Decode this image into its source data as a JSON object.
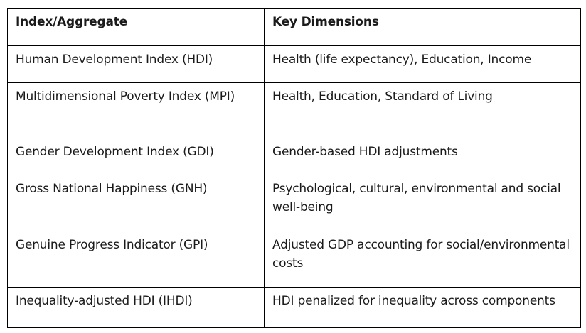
{
  "table": {
    "headers": [
      "Index/Aggregate",
      "Key Dimensions"
    ],
    "rows": [
      [
        "Human Development Index (HDI)",
        "Health (life expectancy), Education, Income"
      ],
      [
        "Multidimensional Poverty Index (MPI)",
        "Health, Education, Standard of Living"
      ],
      [
        "Gender Development Index (GDI)",
        "Gender-based HDI adjustments"
      ],
      [
        "Gross National Happiness (GNH)",
        "Psychological, cultural, environmental and social well-being"
      ],
      [
        "Genuine Progress Indicator (GPI)",
        "Adjusted GDP accounting for social/environmental costs"
      ],
      [
        "Inequality-adjusted HDI (IHDI)",
        "HDI penalized for inequality across components"
      ]
    ]
  }
}
